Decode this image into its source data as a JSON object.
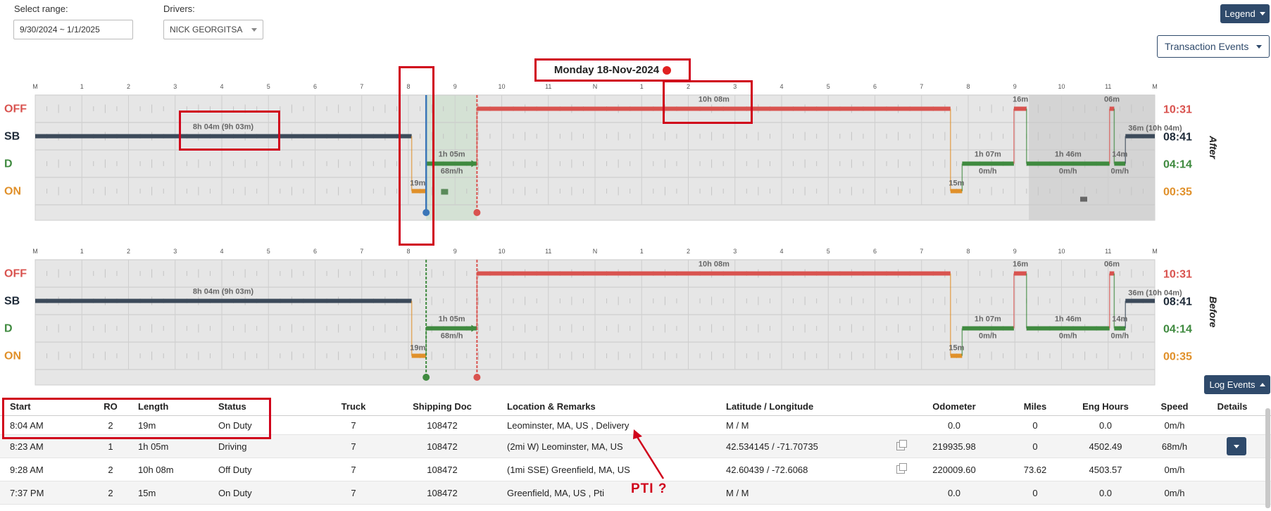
{
  "filters": {
    "range_label": "Select range:",
    "range_value": "9/30/2024 ~ 1/1/2025",
    "drivers_label": "Drivers:",
    "driver_value": "NICK GEORGITSA"
  },
  "buttons": {
    "legend": "Legend",
    "transaction_events": "Transaction Events",
    "log_events": "Log Events"
  },
  "date_title": "Monday 18-Nov-2024",
  "hour_labels": [
    "M",
    "1",
    "2",
    "3",
    "4",
    "5",
    "6",
    "7",
    "8",
    "9",
    "10",
    "11",
    "N",
    "1",
    "2",
    "3",
    "4",
    "5",
    "6",
    "7",
    "8",
    "9",
    "10",
    "11",
    "M"
  ],
  "status_labels": [
    "OFF",
    "SB",
    "D",
    "ON"
  ],
  "colors": {
    "off": "#d9534f",
    "sb": "#3c4a5a",
    "d": "#3f8a3f",
    "on": "#e0902a",
    "brand": "#2f4a6b",
    "annotation": "#d0021b"
  },
  "after_chart": {
    "side_label": "After",
    "totals": [
      "10:31",
      "08:41",
      "04:14",
      "00:35"
    ],
    "labels": {
      "sb1": "8h 04m (9h 03m)",
      "on1": "19m",
      "d1": "1h 05m",
      "d1_speed": "68m/h",
      "off1": "10h 08m",
      "on2": "15m",
      "d2": "1h 07m",
      "d2_speed": "0m/h",
      "off2": "16m",
      "d3": "1h 46m",
      "d3_speed": "0m/h",
      "off3": "06m",
      "d4": "14m",
      "d4_speed": "0m/h",
      "sb2": "36m (10h 04m)"
    }
  },
  "before_chart": {
    "side_label": "Before",
    "totals": [
      "10:31",
      "08:41",
      "04:14",
      "00:35"
    ],
    "labels": {
      "sb1": "8h 04m (9h 03m)",
      "on1": "19m",
      "d1": "1h 05m",
      "d1_speed": "68m/h",
      "off1": "10h 08m",
      "on2": "15m",
      "d2": "1h 07m",
      "d2_speed": "0m/h",
      "off2": "16m",
      "d3": "1h 46m",
      "d3_speed": "0m/h",
      "off3": "06m",
      "d4": "14m",
      "d4_speed": "0m/h",
      "sb2": "36m (10h 04m)"
    }
  },
  "table": {
    "headers": [
      "Start",
      "RO",
      "Length",
      "Status",
      "Truck",
      "Shipping Doc",
      "Location & Remarks",
      "Latitude / Longitude",
      "Odometer",
      "Miles",
      "Eng Hours",
      "Speed",
      "Details"
    ],
    "rows": [
      [
        "8:04 AM",
        "2",
        "19m",
        "On Duty",
        "7",
        "108472",
        "Leominster, MA, US , Delivery",
        "M / M",
        "0.0",
        "0",
        "0.0",
        "0m/h"
      ],
      [
        "8:23 AM",
        "1",
        "1h 05m",
        "Driving",
        "7",
        "108472",
        "(2mi W) Leominster, MA, US",
        "42.534145 / -71.70735",
        "219935.98",
        "0",
        "4502.49",
        "68m/h"
      ],
      [
        "9:28 AM",
        "2",
        "10h 08m",
        "Off Duty",
        "7",
        "108472",
        "(1mi SSE) Greenfield, MA, US",
        "42.60439 / -72.6068",
        "220009.60",
        "73.62",
        "4503.57",
        "0m/h"
      ],
      [
        "7:37 PM",
        "2",
        "15m",
        "On Duty",
        "7",
        "108472",
        "Greenfield, MA, US , Pti",
        "M / M",
        "0.0",
        "0",
        "0.0",
        "0m/h"
      ]
    ]
  },
  "annotation_text": "PTI ?"
}
